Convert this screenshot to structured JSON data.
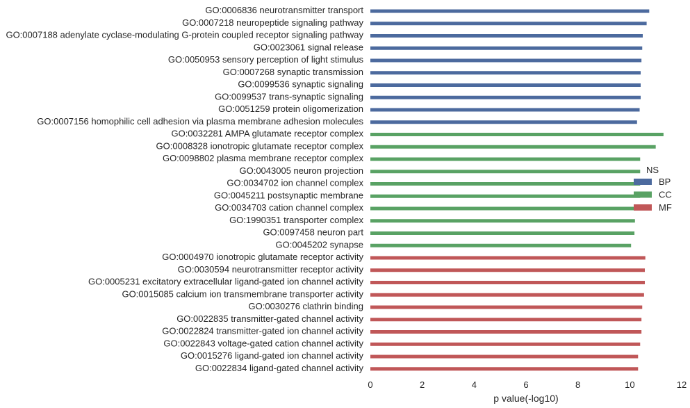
{
  "chart_data": {
    "type": "bar",
    "orientation": "horizontal",
    "xlabel": "p value(-log10)",
    "ylabel": "",
    "xlim": [
      0,
      12
    ],
    "xticks": [
      0,
      2,
      4,
      6,
      8,
      10,
      12
    ],
    "legend": {
      "title": "NS",
      "placement": "right",
      "entries": [
        {
          "name": "BP",
          "color": "#4c6a9e"
        },
        {
          "name": "CC",
          "color": "#59a264"
        },
        {
          "name": "MF",
          "color": "#c05758"
        }
      ]
    },
    "series": [
      {
        "name": "BP",
        "color": "#4c6a9e",
        "categories": [
          "GO:0006836 neurotransmitter transport",
          "GO:0007218 neuropeptide signaling pathway",
          "GO:0007188 adenylate cyclase-modulating G-protein coupled receptor signaling pathway",
          "GO:0023061 signal release",
          "GO:0050953 sensory perception of light stimulus",
          "GO:0007268 synaptic transmission",
          "GO:0099536 synaptic signaling",
          "GO:0099537 trans-synaptic signaling",
          "GO:0051259 protein oligomerization",
          "GO:0007156 homophilic cell adhesion via plasma membrane adhesion molecules"
        ],
        "values": [
          10.75,
          10.65,
          10.5,
          10.48,
          10.45,
          10.42,
          10.42,
          10.42,
          10.38,
          10.28
        ]
      },
      {
        "name": "CC",
        "color": "#59a264",
        "categories": [
          "GO:0032281 AMPA glutamate receptor complex",
          "GO:0008328 ionotropic glutamate receptor complex",
          "GO:0098802 plasma membrane receptor complex",
          "GO:0043005 neuron projection",
          "GO:0034702 ion channel complex",
          "GO:0045211 postsynaptic membrane",
          "GO:0034703 cation channel complex",
          "GO:1990351 transporter complex",
          "GO:0097458 neuron part",
          "GO:0045202 synapse"
        ],
        "values": [
          11.3,
          11.0,
          10.4,
          10.4,
          10.4,
          10.4,
          10.4,
          10.2,
          10.18,
          10.05
        ]
      },
      {
        "name": "MF",
        "color": "#c05758",
        "categories": [
          "GO:0004970 ionotropic glutamate receptor activity",
          "GO:0030594 neurotransmitter receptor activity",
          "GO:0005231 excitatory extracellular ligand-gated ion channel activity",
          "GO:0015085 calcium ion transmembrane transporter activity",
          "GO:0030276 clathrin binding",
          "GO:0022835 transmitter-gated channel activity",
          "GO:0022824 transmitter-gated ion channel activity",
          "GO:0022843 voltage-gated cation channel activity",
          "GO:0015276 ligand-gated ion channel activity",
          "GO:0022834 ligand-gated channel activity"
        ],
        "values": [
          10.6,
          10.58,
          10.58,
          10.55,
          10.48,
          10.45,
          10.45,
          10.4,
          10.32,
          10.32
        ]
      }
    ]
  }
}
